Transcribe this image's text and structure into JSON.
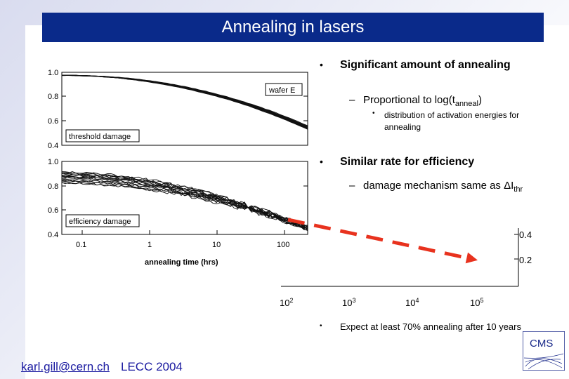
{
  "title": "Annealing in lasers",
  "bullets": {
    "b1": "Significant amount of annealing",
    "b1_sub_prefix": "Proportional to log(t",
    "b1_sub_subscript": "anneal",
    "b1_sub_suffix": ")",
    "b1_subsub": "distribution of activation energies for annealing",
    "b2": "Similar rate for efficiency",
    "b2_sub_prefix": "damage mechanism same as ΔI",
    "b2_sub_subscript": "thr",
    "b3": "Expect at least 70% annealing after 10 years"
  },
  "left_plot": {
    "top_panel": {
      "label": "threshold damage",
      "legend": "wafer E",
      "ytick_labels": [
        "1.0",
        "0.8",
        "0.6",
        "0.4"
      ]
    },
    "bottom_panel": {
      "label": "efficiency damage",
      "ytick_labels": [
        "1.0",
        "0.8",
        "0.6",
        "0.4"
      ]
    },
    "xtick_labels": [
      "0.1",
      "1",
      "10",
      "100"
    ],
    "xlabel": "annealing time (hrs)"
  },
  "chart_data": {
    "type": "line",
    "series": [
      {
        "x": [
          100,
          1000,
          10000,
          100000
        ],
        "y": [
          0.52,
          0.41,
          0.3,
          0.19
        ]
      }
    ],
    "right_ytick_labels": [
      "0.4",
      "0.2"
    ],
    "x_tick_bases": [
      "10",
      "10",
      "10",
      "10"
    ],
    "x_tick_exponents": [
      "2",
      "3",
      "4",
      "5"
    ],
    "color": "#e8321e",
    "line_style": "dashed"
  },
  "footer": {
    "email": "karl.gill@cern.ch",
    "conference": "LECC 2004"
  },
  "logo": {
    "text": "CMS"
  }
}
